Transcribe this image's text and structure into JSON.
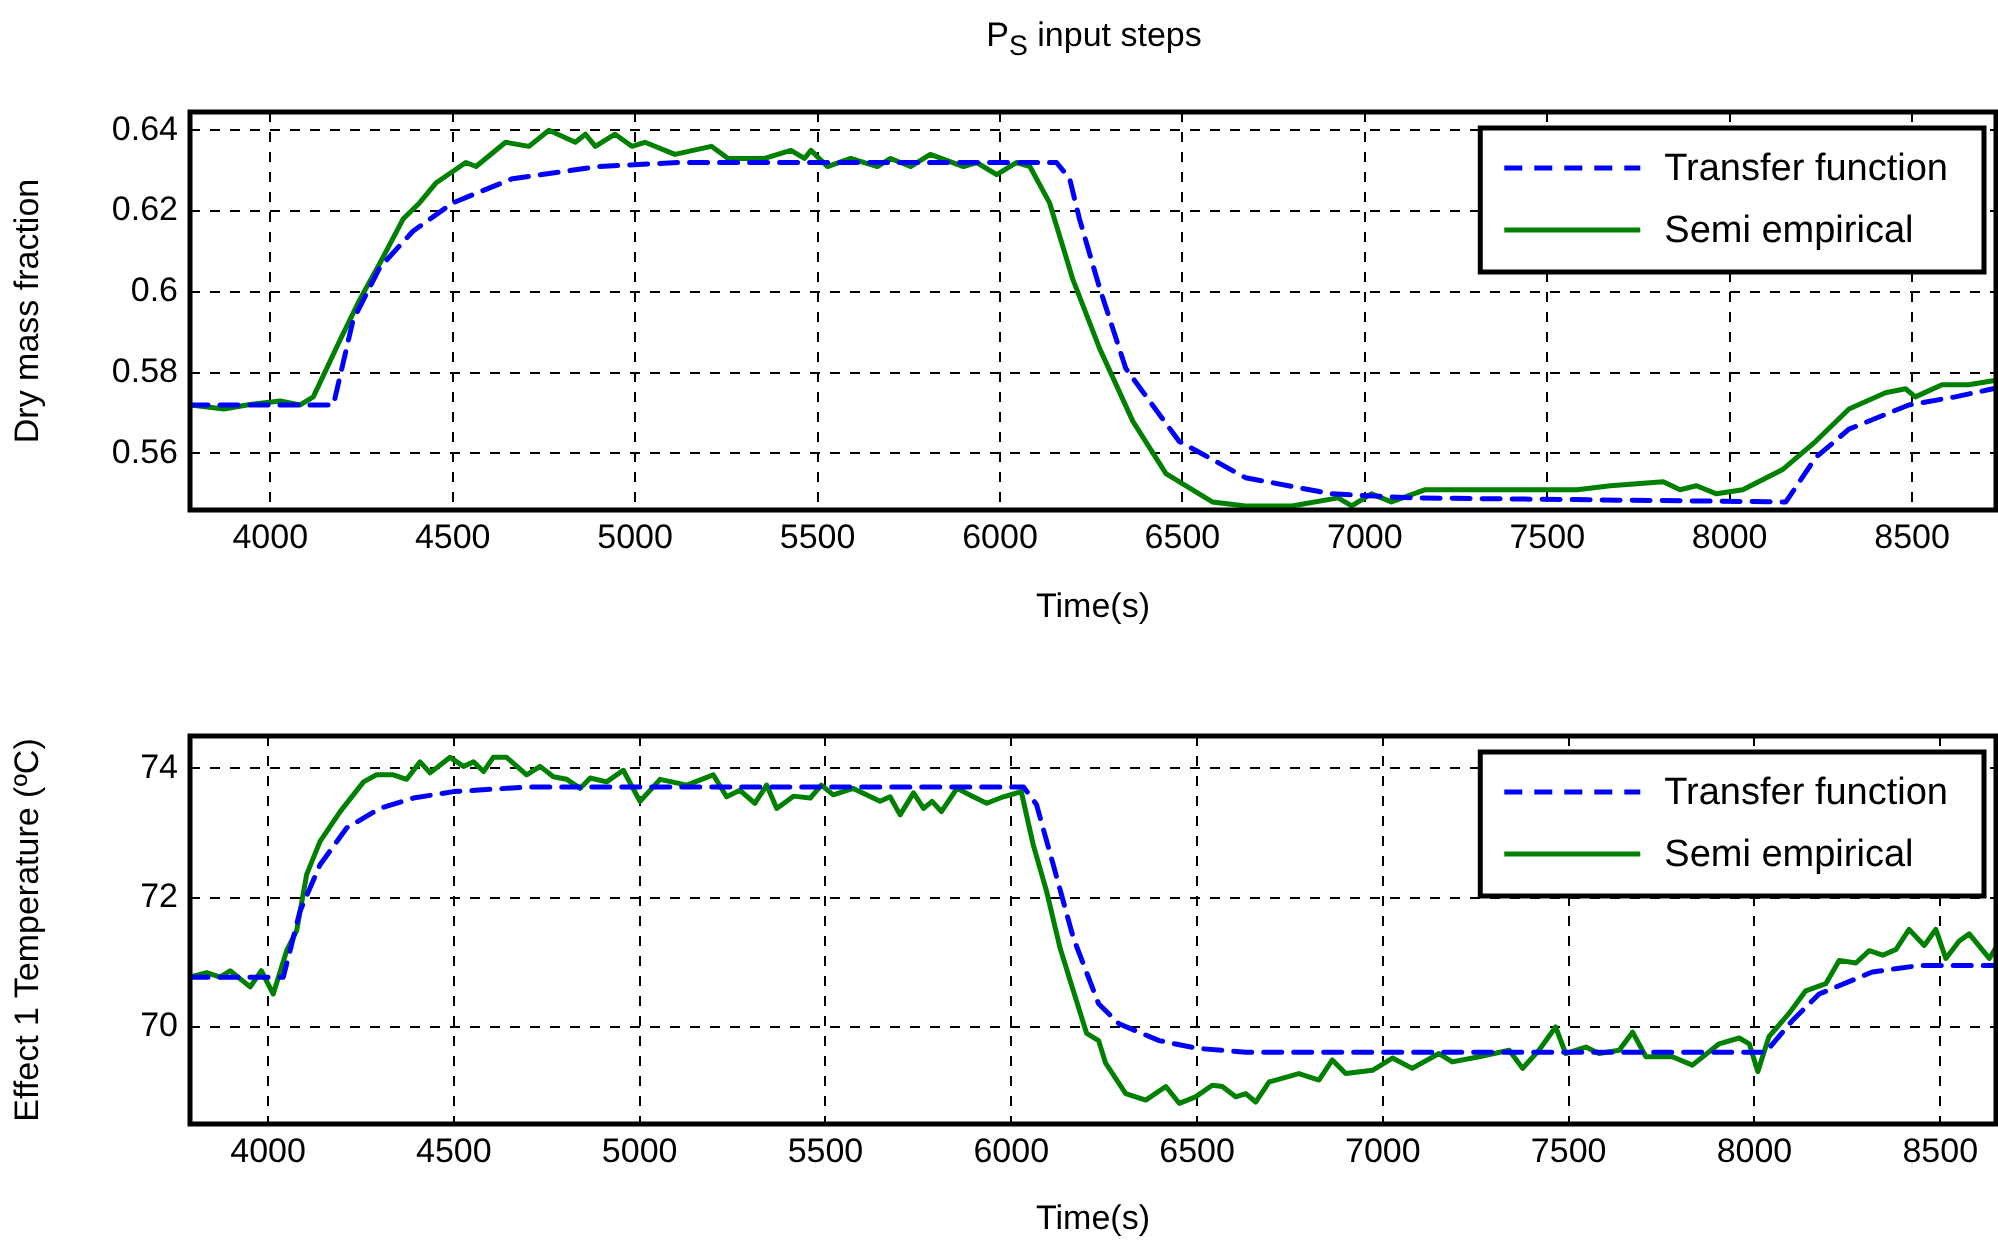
{
  "chart_data": [
    {
      "type": "line",
      "title": "P$_{S}$ input steps",
      "xlabel": "Time(s)",
      "ylabel": "Dry mass fraction",
      "xlim": [
        3780,
        8730
      ],
      "xticks": [
        4000,
        4500,
        5000,
        5500,
        6000,
        6500,
        7000,
        7500,
        8000,
        8500
      ],
      "ylim": [
        0.546,
        0.6445
      ],
      "yticks": [
        0.56,
        0.58,
        0.6,
        0.62,
        0.64
      ],
      "grid": true,
      "legend": "top right",
      "marker": "none",
      "series": [
        {
          "name": "Transfer function",
          "color": "#0000ff",
          "line_style": "dashed",
          "x": [
            3780,
            4173,
            4227,
            4300,
            4391,
            4500,
            4664,
            4900,
            5118,
            6155,
            6191,
            6218,
            6273,
            6345,
            6491,
            6673,
            6909,
            7127,
            8154,
            8236,
            8327,
            8491,
            8618,
            8722
          ],
          "values": [
            0.572,
            0.572,
            0.593,
            0.606,
            0.615,
            0.622,
            0.628,
            0.631,
            0.632,
            0.632,
            0.628,
            0.618,
            0.601,
            0.581,
            0.563,
            0.554,
            0.55,
            0.549,
            0.548,
            0.559,
            0.566,
            0.572,
            0.574,
            0.576
          ]
        },
        {
          "name": "Semi empirical",
          "color": "#008000",
          "line_style": "solid",
          "x": [
            3782,
            3873,
            3936,
            4027,
            4082,
            4118,
            4191,
            4245,
            4300,
            4364,
            4409,
            4455,
            4536,
            4564,
            4645,
            4709,
            4764,
            4836,
            4864,
            4891,
            4945,
            4991,
            5027,
            5109,
            5209,
            5255,
            5355,
            5427,
            5464,
            5482,
            5527,
            5591,
            5664,
            5700,
            5755,
            5809,
            5900,
            5936,
            5991,
            6045,
            6082,
            6136,
            6200,
            6273,
            6364,
            6455,
            6582,
            6673,
            6800,
            6927,
            6964,
            7018,
            7073,
            7164,
            7309,
            7382,
            7582,
            7673,
            7818,
            7864,
            7909,
            7964,
            8036,
            8145,
            8236,
            8327,
            8427,
            8482,
            8509,
            8582,
            8655,
            8722
          ],
          "values": [
            0.572,
            0.571,
            0.572,
            0.573,
            0.572,
            0.574,
            0.588,
            0.598,
            0.607,
            0.618,
            0.622,
            0.627,
            0.632,
            0.631,
            0.637,
            0.636,
            0.64,
            0.637,
            0.639,
            0.636,
            0.639,
            0.636,
            0.637,
            0.634,
            0.636,
            0.633,
            0.633,
            0.635,
            0.633,
            0.635,
            0.631,
            0.633,
            0.631,
            0.633,
            0.631,
            0.634,
            0.631,
            0.632,
            0.629,
            0.632,
            0.631,
            0.622,
            0.603,
            0.586,
            0.568,
            0.555,
            0.548,
            0.547,
            0.547,
            0.549,
            0.547,
            0.55,
            0.548,
            0.551,
            0.551,
            0.551,
            0.551,
            0.552,
            0.553,
            0.551,
            0.552,
            0.55,
            0.551,
            0.556,
            0.563,
            0.571,
            0.575,
            0.576,
            0.574,
            0.577,
            0.577,
            0.578
          ]
        }
      ]
    },
    {
      "type": "line",
      "xlabel": "Time(s)",
      "ylabel": "Effect 1 Temperature (ºC)",
      "xlim": [
        3790,
        8650
      ],
      "xticks": [
        4000,
        4500,
        5000,
        5500,
        6000,
        6500,
        7000,
        7500,
        8000,
        8500
      ],
      "ylim": [
        68.5,
        74.5
      ],
      "yticks": [
        70,
        72,
        74
      ],
      "grid": true,
      "legend": "top right",
      "marker": "none",
      "series": [
        {
          "name": "Transfer function",
          "color": "#0000ff",
          "line_style": "dashed",
          "x": [
            3790,
            4041,
            4086,
            4140,
            4212,
            4301,
            4391,
            4499,
            4696,
            6033,
            6068,
            6113,
            6167,
            6235,
            6290,
            6398,
            6500,
            6631,
            8030,
            8102,
            8174,
            8317,
            8443,
            8650
          ],
          "values": [
            70.77,
            70.77,
            71.79,
            72.51,
            73.08,
            73.38,
            73.54,
            73.64,
            73.71,
            73.71,
            73.44,
            72.51,
            71.38,
            70.36,
            70.05,
            69.79,
            69.67,
            69.61,
            69.61,
            70.1,
            70.51,
            70.85,
            70.95,
            70.95
          ]
        },
        {
          "name": "Semi empirical",
          "color": "#008000",
          "line_style": "solid",
          "x": [
            3790,
            3835,
            3871,
            3898,
            3952,
            3982,
            4014,
            4050,
            4077,
            4104,
            4140,
            4194,
            4257,
            4292,
            4337,
            4373,
            4409,
            4436,
            4490,
            4526,
            4553,
            4580,
            4606,
            4642,
            4696,
            4732,
            4768,
            4804,
            4840,
            4867,
            4911,
            4956,
            5001,
            5055,
            5127,
            5198,
            5234,
            5270,
            5310,
            5342,
            5369,
            5414,
            5459,
            5489,
            5521,
            5575,
            5647,
            5674,
            5701,
            5737,
            5764,
            5787,
            5812,
            5854,
            5898,
            5934,
            5979,
            6027,
            6059,
            6095,
            6131,
            6167,
            6203,
            6235,
            6254,
            6308,
            6362,
            6416,
            6452,
            6496,
            6541,
            6568,
            6604,
            6631,
            6658,
            6694,
            6774,
            6828,
            6864,
            6900,
            6972,
            7026,
            7079,
            7151,
            7187,
            7259,
            7340,
            7376,
            7420,
            7465,
            7492,
            7546,
            7582,
            7636,
            7672,
            7708,
            7779,
            7833,
            7905,
            7959,
            7986,
            8009,
            8039,
            8093,
            8138,
            8192,
            8228,
            8273,
            8309,
            8345,
            8381,
            8416,
            8457,
            8488,
            8515,
            8551,
            8578,
            8632,
            8650
          ],
          "values": [
            70.77,
            70.84,
            70.77,
            70.87,
            70.62,
            70.87,
            70.51,
            71.18,
            71.49,
            72.36,
            72.87,
            73.33,
            73.79,
            73.9,
            73.9,
            73.83,
            74.1,
            73.93,
            74.17,
            74.03,
            74.1,
            73.95,
            74.17,
            74.17,
            73.9,
            74.03,
            73.87,
            73.83,
            73.69,
            73.85,
            73.79,
            73.97,
            73.49,
            73.83,
            73.74,
            73.9,
            73.56,
            73.66,
            73.46,
            73.74,
            73.38,
            73.57,
            73.54,
            73.74,
            73.59,
            73.69,
            73.49,
            73.56,
            73.28,
            73.62,
            73.38,
            73.49,
            73.33,
            73.69,
            73.56,
            73.46,
            73.56,
            73.64,
            72.82,
            72.1,
            71.23,
            70.56,
            69.9,
            69.79,
            69.44,
            68.97,
            68.87,
            69.08,
            68.82,
            68.92,
            69.1,
            69.08,
            68.92,
            68.97,
            68.84,
            69.15,
            69.28,
            69.18,
            69.49,
            69.28,
            69.33,
            69.52,
            69.36,
            69.59,
            69.46,
            69.54,
            69.64,
            69.36,
            69.64,
            70.0,
            69.59,
            69.69,
            69.59,
            69.64,
            69.92,
            69.54,
            69.54,
            69.41,
            69.74,
            69.83,
            69.74,
            69.31,
            69.85,
            70.21,
            70.56,
            70.67,
            71.03,
            70.99,
            71.18,
            71.11,
            71.2,
            71.51,
            71.26,
            71.51,
            71.06,
            71.33,
            71.44,
            71.06,
            71.23
          ]
        }
      ]
    }
  ]
}
